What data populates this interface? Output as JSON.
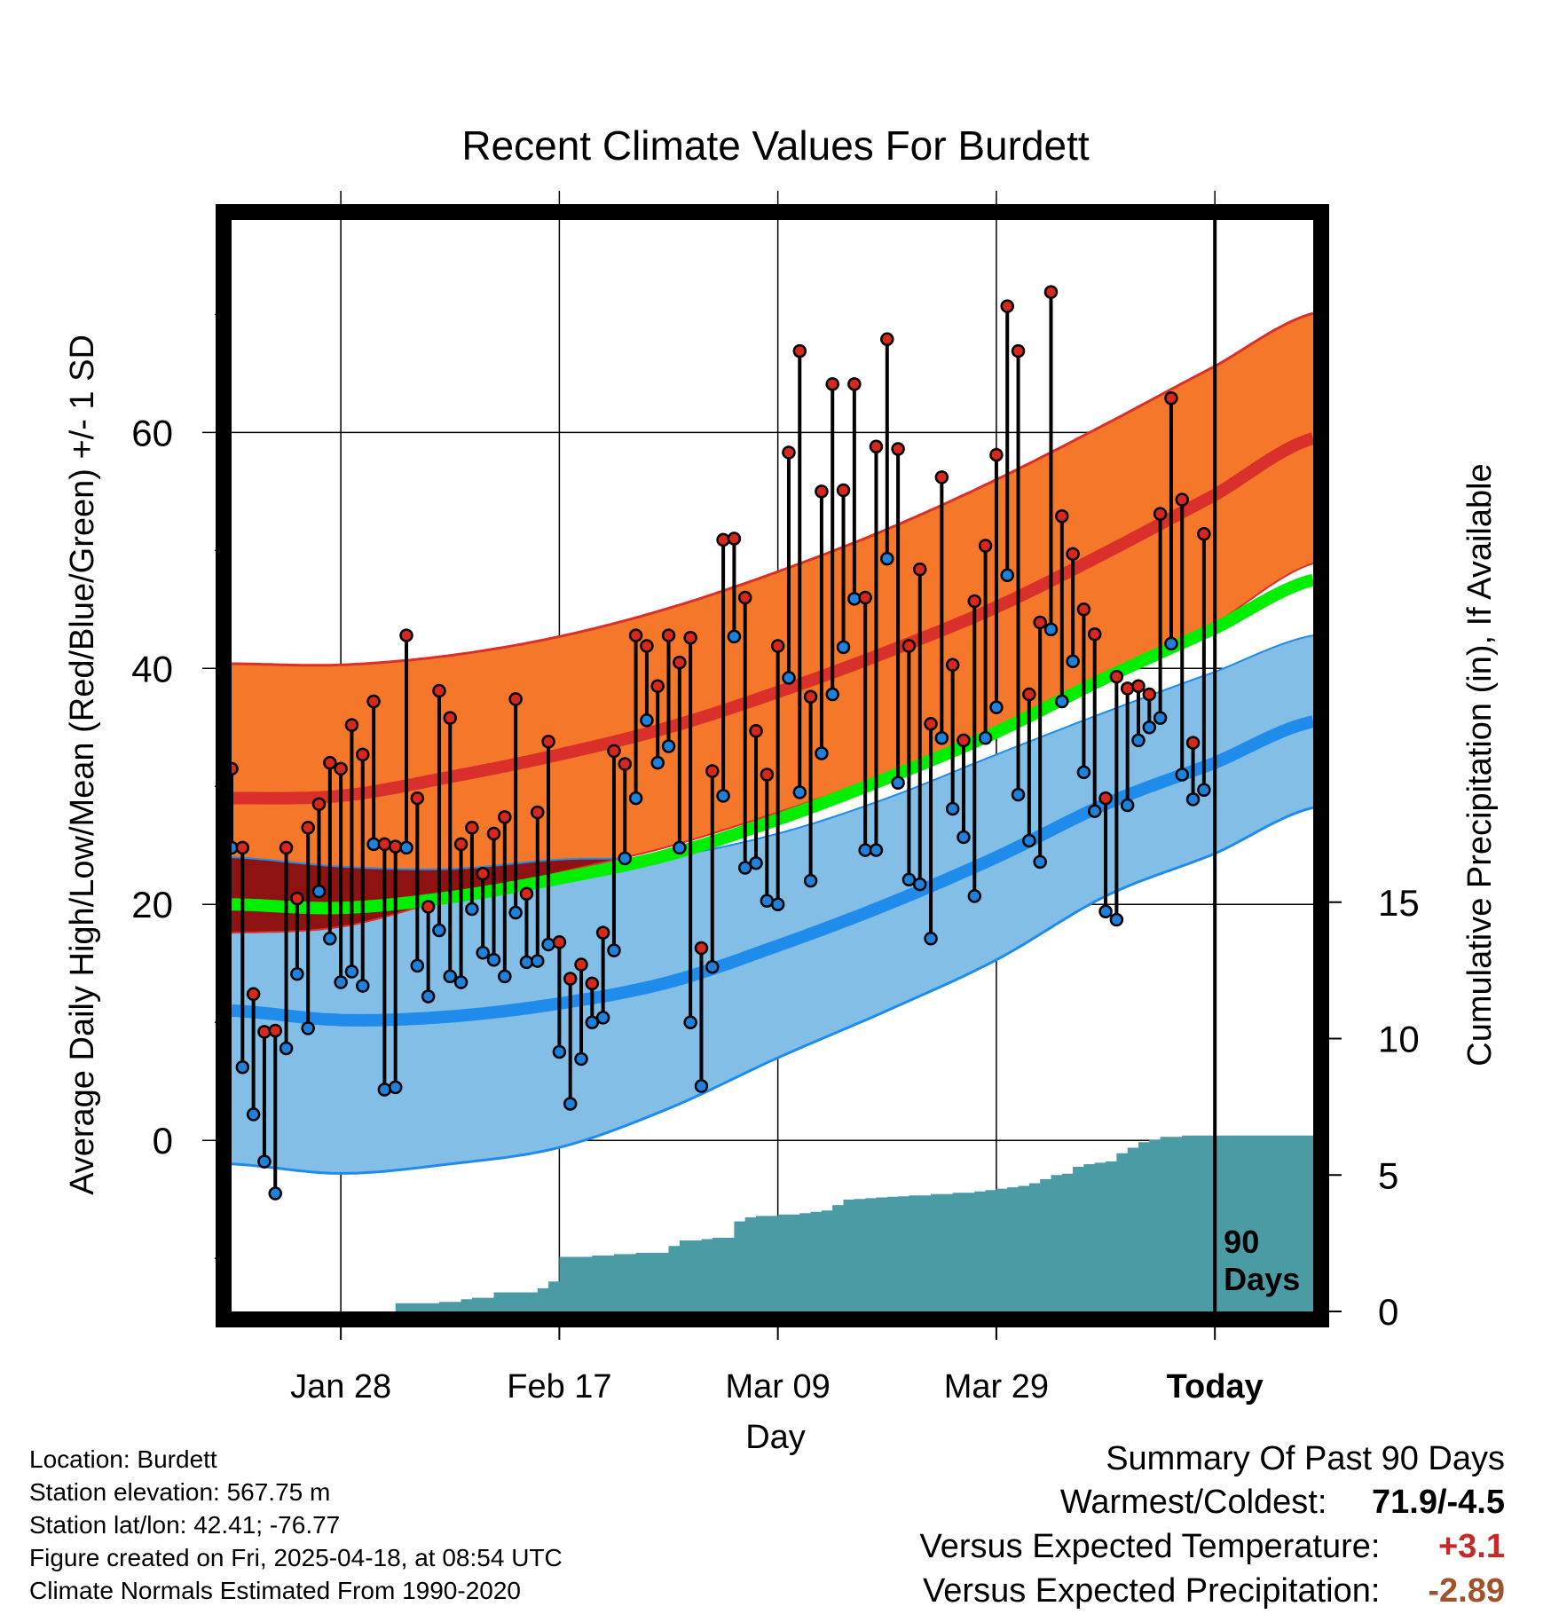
{
  "chart_data": {
    "type": "line",
    "title": "Recent Climate Values For Burdett",
    "xlabel": "Day",
    "ylabel": "Average Daily High/Low/Mean (Red/Blue/Green) +/- 1 SD",
    "y2label": "Cumulative Precipitation (in), If Available",
    "xlim_days": [
      -90,
      9
    ],
    "ylim": [
      -14.5,
      78
    ],
    "y2lim": [
      0,
      40
    ],
    "x_ticks": [
      {
        "day": -80,
        "label": "Jan 28"
      },
      {
        "day": -60,
        "label": "Feb 17"
      },
      {
        "day": -40,
        "label": "Mar 09"
      },
      {
        "day": -20,
        "label": "Mar 29"
      },
      {
        "day": 0,
        "label": "Today"
      }
    ],
    "y_ticks": [
      0,
      20,
      40,
      60
    ],
    "y2_ticks": [
      0,
      5,
      10,
      15
    ],
    "today_label": "90\nDays",
    "normals": {
      "days": [
        -90,
        -80,
        -70,
        -60,
        -50,
        -40,
        -30,
        -20,
        -10,
        0,
        9
      ],
      "high_mean": [
        29.0,
        29.2,
        30.8,
        32.7,
        35.0,
        38.0,
        41.4,
        45.2,
        49.8,
        54.7,
        59.5
      ],
      "high_sd": [
        11.4,
        11.1,
        10.3,
        10.0,
        10.1,
        10.2,
        10.4,
        10.8,
        10.9,
        10.9,
        10.6
      ],
      "low_mean": [
        11.0,
        10.2,
        10.5,
        11.6,
        13.4,
        16.5,
        20.0,
        24.0,
        28.5,
        32.0,
        35.5
      ],
      "low_sd": [
        13.0,
        13.0,
        12.5,
        12.2,
        10.7,
        9.5,
        9.0,
        8.7,
        7.8,
        7.7,
        7.3
      ],
      "avg_mean": [
        20.0,
        19.7,
        20.6,
        22.2,
        24.2,
        27.2,
        30.7,
        34.6,
        39.2,
        43.4,
        47.5
      ]
    },
    "observed": {
      "days": [
        -90,
        -89,
        -88,
        -87,
        -86,
        -85,
        -84,
        -83,
        -82,
        -81,
        -80,
        -79,
        -78,
        -77,
        -76,
        -75,
        -74,
        -73,
        -72,
        -71,
        -70,
        -69,
        -68,
        -67,
        -66,
        -65,
        -64,
        -63,
        -62,
        -61,
        -60,
        -59,
        -58,
        -57,
        -56,
        -55,
        -54,
        -53,
        -52,
        -51,
        -50,
        -49,
        -48,
        -47,
        -46,
        -45,
        -44,
        -43,
        -42,
        -41,
        -40,
        -39,
        -38,
        -37,
        -36,
        -35,
        -34,
        -33,
        -32,
        -31,
        -30,
        -29,
        -28,
        -27,
        -26,
        -25,
        -24,
        -23,
        -22,
        -21,
        -20,
        -19,
        -18,
        -17,
        -16,
        -15,
        -14,
        -13,
        -12,
        -11,
        -10,
        -9,
        -8,
        -7,
        -6,
        -5,
        -4,
        -3,
        -2,
        -1
      ],
      "high": [
        31.5,
        24.8,
        12.4,
        9.2,
        9.3,
        24.8,
        20.5,
        26.5,
        28.5,
        32.0,
        31.5,
        35.2,
        32.7,
        37.2,
        25.1,
        24.9,
        42.8,
        29.0,
        19.8,
        38.1,
        35.8,
        25.1,
        26.5,
        22.6,
        26.0,
        27.4,
        37.4,
        20.9,
        27.8,
        33.8,
        16.8,
        13.7,
        14.9,
        13.3,
        17.6,
        33.0,
        31.9,
        42.8,
        41.9,
        38.5,
        42.8,
        40.5,
        42.6,
        16.3,
        31.3,
        50.9,
        51.0,
        46.0,
        34.7,
        31.0,
        41.9,
        58.3,
        66.9,
        37.6,
        55.0,
        64.1,
        55.1,
        64.1,
        46.0,
        58.8,
        67.9,
        58.6,
        41.9,
        48.4,
        35.3,
        56.2,
        40.3,
        33.9,
        45.7,
        50.4,
        58.1,
        70.7,
        66.9,
        37.8,
        43.9,
        71.9,
        52.9,
        49.7,
        45.0,
        42.9,
        29.0,
        39.3,
        38.3,
        38.5,
        37.8,
        53.1,
        62.9,
        54.3,
        33.7,
        51.4
      ],
      "low": [
        24.8,
        6.2,
        2.2,
        -1.8,
        -4.5,
        7.8,
        14.1,
        9.5,
        21.1,
        17.1,
        13.4,
        14.3,
        13.1,
        25.1,
        4.3,
        4.5,
        24.8,
        14.8,
        12.2,
        17.8,
        13.9,
        13.4,
        19.6,
        15.9,
        15.3,
        13.9,
        19.3,
        15.1,
        15.2,
        16.6,
        7.5,
        3.1,
        6.9,
        10.0,
        10.4,
        16.1,
        23.9,
        29.0,
        35.6,
        32.0,
        33.4,
        24.8,
        10.0,
        4.6,
        14.7,
        29.2,
        42.7,
        23.1,
        23.5,
        20.3,
        20.0,
        39.2,
        29.5,
        22.0,
        32.8,
        37.8,
        41.8,
        45.9,
        24.6,
        24.6,
        49.3,
        30.3,
        22.1,
        21.7,
        17.1,
        34.1,
        28.1,
        25.7,
        20.7,
        34.1,
        36.7,
        47.9,
        29.3,
        25.4,
        23.6,
        43.3,
        37.2,
        40.6,
        31.2,
        27.9,
        19.4,
        18.7,
        28.4,
        33.9,
        35.0,
        35.8,
        42.1,
        31.0,
        28.9,
        29.7
      ]
    },
    "precip": {
      "days": [
        -90,
        -84,
        -78,
        -75,
        -71,
        -69,
        -68,
        -66,
        -62,
        -61,
        -60,
        -57,
        -55,
        -53,
        -50,
        -49,
        -47,
        -46,
        -45,
        -44,
        -43,
        -42,
        -40,
        -38,
        -37,
        -36,
        -35,
        -34,
        -33,
        -32,
        -31,
        -30,
        -29,
        -28,
        -26,
        -24,
        -22,
        -21,
        -20,
        -19,
        -18,
        -17,
        -16,
        -15,
        -14,
        -13,
        -12,
        -11,
        -10,
        -9,
        -8,
        -7,
        -6,
        -5,
        -3,
        9
      ],
      "values": [
        0,
        0,
        0,
        0.3,
        0.35,
        0.45,
        0.5,
        0.7,
        0.85,
        1.1,
        2.0,
        2.05,
        2.1,
        2.15,
        2.4,
        2.6,
        2.65,
        2.7,
        2.7,
        3.3,
        3.45,
        3.5,
        3.55,
        3.6,
        3.65,
        3.7,
        3.9,
        4.1,
        4.12,
        4.15,
        4.18,
        4.2,
        4.22,
        4.25,
        4.3,
        4.35,
        4.4,
        4.45,
        4.5,
        4.55,
        4.6,
        4.7,
        4.85,
        5.0,
        5.05,
        5.3,
        5.4,
        5.45,
        5.5,
        5.8,
        6.0,
        6.2,
        6.3,
        6.4,
        6.45,
        6.45
      ]
    }
  },
  "colors": {
    "high_band": "#f5782a",
    "high_line": "#d9302b",
    "low_band": "#82bee6",
    "low_line": "#1f8ceb",
    "overlap": "#8f1213",
    "avg_line": "#00ee00",
    "precip_fill": "#4a9ba4",
    "high_dot": "#d7281e",
    "low_dot": "#1e82dc"
  },
  "footer": {
    "location": "Location: Burdett",
    "elevation": "Station elevation: 567.75 m",
    "latlon": "Station lat/lon: 42.41; -76.77",
    "created": "Figure created on Fri, 2025-04-18, at 08:54 UTC",
    "normals": "Climate Normals Estimated From 1990-2020"
  },
  "summary": {
    "title": "Summary Of Past 90 Days",
    "warmest_label": "Warmest/Coldest:",
    "warmest_value": "71.9/-4.5",
    "temp_label": "Versus Expected Temperature:",
    "temp_value": "+3.1",
    "temp_color": "#c82828",
    "precip_label": "Versus Expected Precipitation:",
    "precip_value": "-2.89",
    "precip_color": "#a0522d"
  }
}
